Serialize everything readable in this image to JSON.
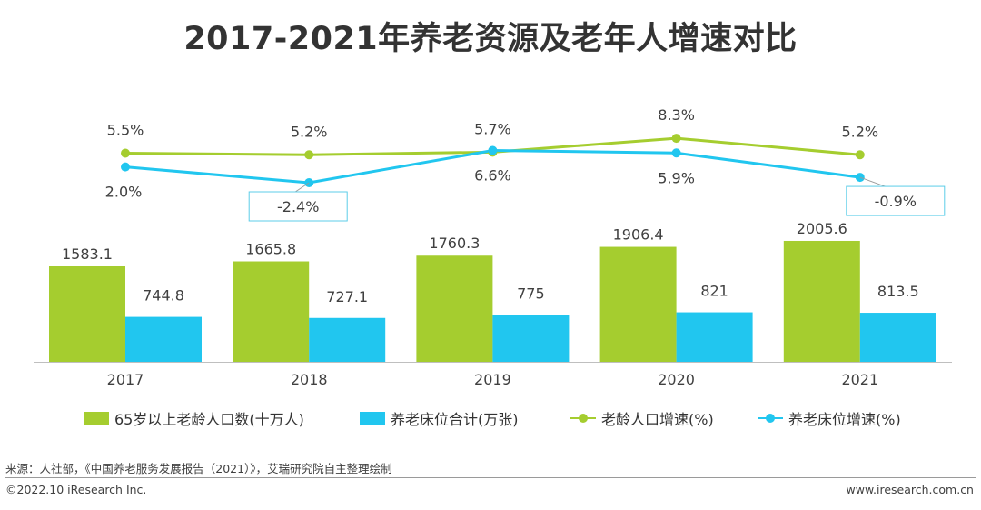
{
  "title": "2017-2021年养老资源及老年人增速对比",
  "colors": {
    "green": "#a5cd2f",
    "blue": "#21c6ef",
    "callout_border": "#5ccde8",
    "axis": "#bfbfbf",
    "text": "#404040"
  },
  "chart_data": {
    "type": "bar",
    "categories": [
      "2017",
      "2018",
      "2019",
      "2020",
      "2021"
    ],
    "series": [
      {
        "name": "65岁以上老龄人口数(十万人)",
        "type": "bar",
        "values": [
          1583.1,
          1665.8,
          1760.3,
          1906.4,
          2005.6
        ],
        "labels": [
          "1583.1",
          "1665.8",
          "1760.3",
          "1906.4",
          "2005.6"
        ]
      },
      {
        "name": "养老床位合计(万张)",
        "type": "bar",
        "values": [
          744.8,
          727.1,
          775,
          821,
          813.5
        ],
        "labels": [
          "744.8",
          "727.1",
          "775",
          "821",
          "813.5"
        ]
      },
      {
        "name": "老龄人口增速(%)",
        "type": "line",
        "values": [
          5.5,
          5.2,
          5.7,
          8.3,
          5.2
        ],
        "labels": [
          "5.5%",
          "5.2%",
          "5.7%",
          "8.3%",
          "5.2%"
        ]
      },
      {
        "name": "养老床位增速(%)",
        "type": "line",
        "values": [
          2.0,
          -2.4,
          6.6,
          5.9,
          -0.9
        ],
        "labels": [
          "2.0%",
          "-2.4%",
          "6.6%",
          "5.9%",
          "-0.9%"
        ]
      }
    ],
    "callouts": [
      "2018",
      "2021"
    ],
    "legend_position": "bottom"
  },
  "footer": {
    "source": "来源：人社部，《中国养老服务发展报告（2021）》，艾瑞研究院自主整理绘制",
    "copyright": "©2022.10 iResearch Inc.",
    "website": "www.iresearch.com.cn"
  }
}
